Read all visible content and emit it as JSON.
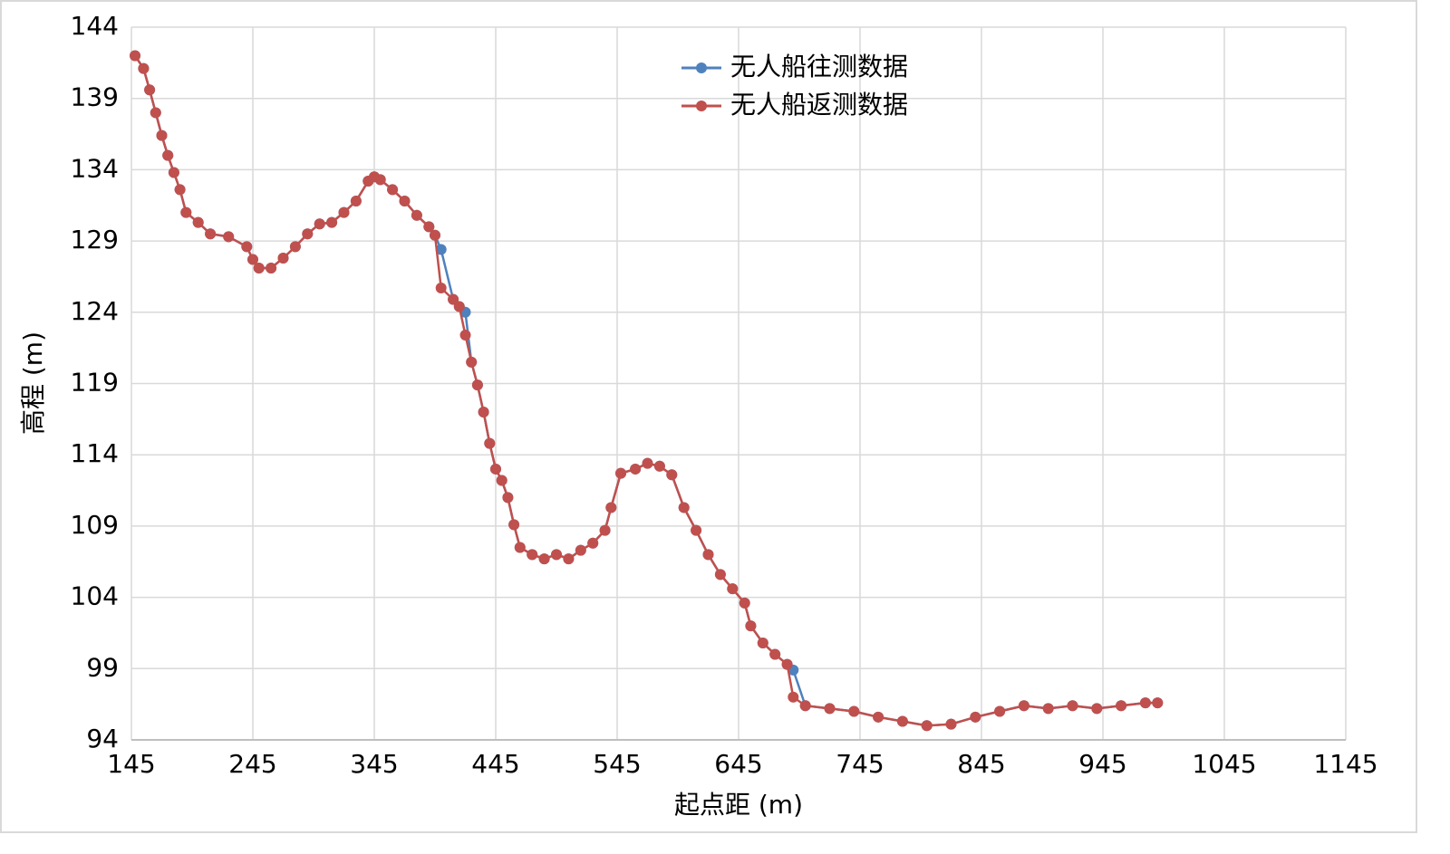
{
  "chart_data": {
    "type": "line",
    "x_label": "起点距 (m)",
    "y_label": "高程 (m)",
    "x": [
      148,
      155,
      160,
      165,
      170,
      175,
      180,
      185,
      190,
      200,
      210,
      225,
      240,
      245,
      250,
      260,
      270,
      280,
      290,
      300,
      310,
      320,
      330,
      340,
      345,
      350,
      360,
      370,
      380,
      390,
      395,
      400,
      410,
      415,
      420,
      425,
      430,
      435,
      440,
      445,
      450,
      455,
      460,
      465,
      475,
      485,
      495,
      505,
      515,
      525,
      535,
      540,
      548,
      560,
      570,
      580,
      590,
      600,
      610,
      620,
      630,
      640,
      650,
      655,
      665,
      675,
      685,
      690,
      700,
      720,
      740,
      760,
      780,
      800,
      820,
      840,
      860,
      880,
      900,
      920,
      940,
      960,
      980,
      990
    ],
    "series": [
      {
        "name": "无人船往测数据",
        "color": "#4f81bd",
        "values": [
          142.0,
          141.1,
          139.6,
          138.0,
          136.4,
          135.0,
          133.8,
          132.6,
          131.0,
          130.3,
          129.5,
          129.3,
          128.6,
          127.7,
          127.1,
          127.1,
          127.8,
          128.6,
          129.5,
          130.2,
          130.3,
          131.0,
          131.8,
          133.2,
          133.5,
          133.3,
          132.6,
          131.8,
          130.8,
          130.0,
          129.4,
          128.4,
          124.9,
          124.4,
          124.0,
          120.5,
          118.9,
          117.0,
          114.8,
          113.0,
          112.2,
          111.0,
          109.1,
          107.5,
          107.0,
          106.7,
          107.0,
          106.7,
          107.3,
          107.8,
          108.7,
          110.3,
          112.7,
          113.0,
          113.4,
          113.2,
          112.6,
          110.3,
          108.7,
          107.0,
          105.6,
          104.6,
          103.6,
          102.0,
          100.8,
          100.0,
          99.3,
          98.9,
          96.4,
          96.2,
          96.0,
          95.6,
          95.3,
          95.0,
          95.1,
          95.6,
          96.0,
          96.4,
          96.2,
          96.4,
          96.2,
          96.4,
          96.6,
          96.6
        ]
      },
      {
        "name": "无人船返测数据",
        "color": "#c0504d",
        "values": [
          142.0,
          141.1,
          139.6,
          138.0,
          136.4,
          135.0,
          133.8,
          132.6,
          131.0,
          130.3,
          129.5,
          129.3,
          128.6,
          127.7,
          127.1,
          127.1,
          127.8,
          128.6,
          129.5,
          130.2,
          130.3,
          131.0,
          131.8,
          133.2,
          133.5,
          133.3,
          132.6,
          131.8,
          130.8,
          130.0,
          129.4,
          125.7,
          124.9,
          124.4,
          122.4,
          120.5,
          118.9,
          117.0,
          114.8,
          113.0,
          112.2,
          111.0,
          109.1,
          107.5,
          107.0,
          106.7,
          107.0,
          106.7,
          107.3,
          107.8,
          108.7,
          110.3,
          112.7,
          113.0,
          113.4,
          113.2,
          112.6,
          110.3,
          108.7,
          107.0,
          105.6,
          104.6,
          103.6,
          102.0,
          100.8,
          100.0,
          99.3,
          97.0,
          96.4,
          96.2,
          96.0,
          95.6,
          95.3,
          95.0,
          95.1,
          95.6,
          96.0,
          96.4,
          96.2,
          96.4,
          96.2,
          96.4,
          96.6,
          96.6
        ]
      }
    ],
    "xlim": [
      145,
      1145
    ],
    "xticks": [
      145,
      245,
      345,
      445,
      545,
      645,
      745,
      845,
      945,
      1045,
      1145
    ],
    "ylim": [
      94,
      144
    ],
    "yticks": [
      94,
      99,
      104,
      109,
      114,
      119,
      124,
      129,
      134,
      139,
      144
    ],
    "grid": true,
    "legend": "top"
  }
}
